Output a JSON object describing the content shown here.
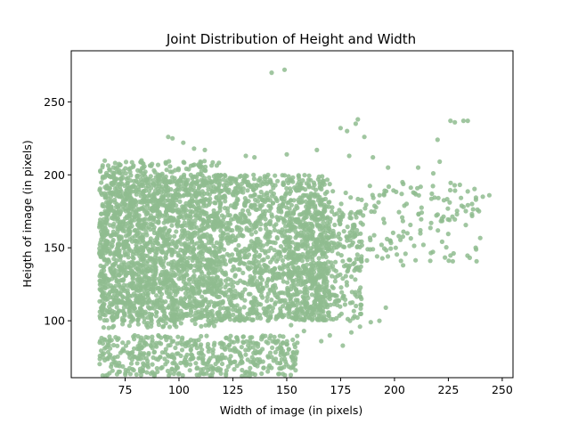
{
  "chart_data": {
    "type": "scatter",
    "title": "Joint Distribution of Height and Width",
    "xlabel": "Width of image (in pixels)",
    "ylabel": "Heigth of image (in pixels)",
    "xlim": [
      50,
      255
    ],
    "ylim": [
      61,
      285
    ],
    "xticks": [
      75,
      100,
      125,
      150,
      175,
      200,
      225,
      250
    ],
    "yticks": [
      100,
      150,
      200,
      250
    ],
    "grid": false,
    "point_color": "#8fbc8f",
    "point_opacity": 0.85,
    "clusters": [
      {
        "x": [
          63,
          170
        ],
        "y": [
          100,
          200
        ],
        "count": 2600
      },
      {
        "x": [
          63,
          120
        ],
        "y": [
          95,
          210
        ],
        "count": 900
      },
      {
        "x": [
          63,
          155
        ],
        "y": [
          62,
          90
        ],
        "count": 500
      },
      {
        "x": [
          150,
          185
        ],
        "y": [
          100,
          175
        ],
        "count": 400
      },
      {
        "x": [
          170,
          240
        ],
        "y": [
          140,
          195
        ],
        "count": 160
      }
    ],
    "points": [
      [
        143,
        270
      ],
      [
        149,
        272
      ],
      [
        183,
        238
      ],
      [
        182,
        235
      ],
      [
        178,
        230
      ],
      [
        175,
        232
      ],
      [
        186,
        226
      ],
      [
        228,
        236
      ],
      [
        226,
        237
      ],
      [
        232,
        237
      ],
      [
        234,
        237
      ],
      [
        220,
        224
      ],
      [
        95,
        226
      ],
      [
        97,
        225
      ],
      [
        102,
        222
      ],
      [
        107,
        218
      ],
      [
        112,
        217
      ],
      [
        131,
        213
      ],
      [
        135,
        212
      ],
      [
        150,
        214
      ],
      [
        164,
        217
      ],
      [
        179,
        213
      ],
      [
        190,
        212
      ],
      [
        197,
        205
      ],
      [
        211,
        205
      ],
      [
        218,
        201
      ],
      [
        221,
        209
      ],
      [
        241,
        185
      ],
      [
        244,
        186
      ],
      [
        236,
        180
      ],
      [
        232,
        178
      ],
      [
        229,
        173
      ],
      [
        222,
        170
      ],
      [
        217,
        167
      ],
      [
        212,
        162
      ],
      [
        206,
        160
      ],
      [
        202,
        158
      ],
      [
        198,
        155
      ],
      [
        194,
        152
      ],
      [
        190,
        149
      ],
      [
        203,
        141
      ],
      [
        204,
        138
      ],
      [
        196,
        109
      ],
      [
        193,
        100
      ],
      [
        189,
        99
      ],
      [
        184,
        96
      ],
      [
        180,
        92
      ],
      [
        176,
        83
      ],
      [
        170,
        90
      ],
      [
        166,
        86
      ],
      [
        152,
        97
      ],
      [
        158,
        93
      ],
      [
        147,
        71
      ],
      [
        139,
        72
      ],
      [
        134,
        75
      ],
      [
        126,
        79
      ],
      [
        119,
        66
      ],
      [
        110,
        64
      ],
      [
        100,
        64
      ],
      [
        90,
        65
      ],
      [
        82,
        67
      ],
      [
        72,
        65
      ]
    ]
  }
}
